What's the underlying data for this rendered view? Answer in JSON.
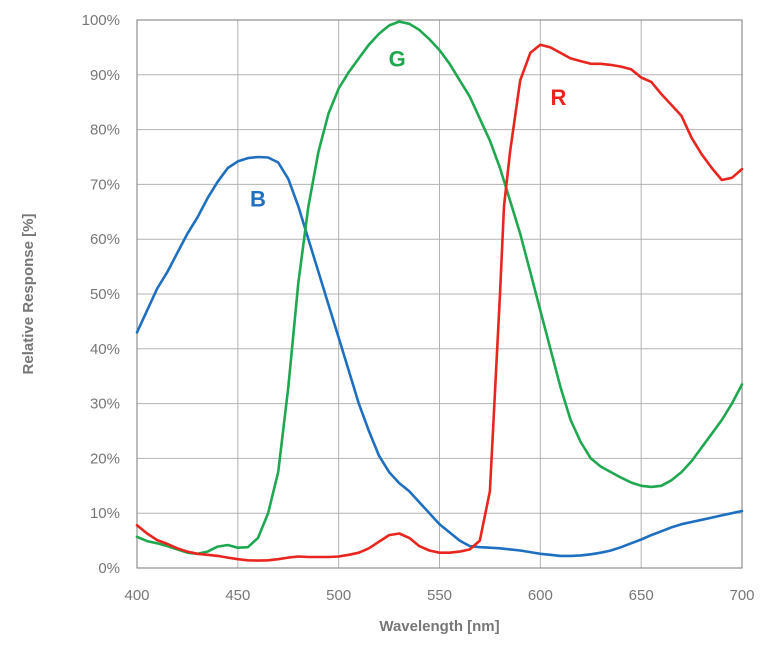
{
  "chart_data": {
    "type": "line",
    "title": "",
    "xlabel": "Wavelength [nm]",
    "ylabel": "Relative Response [%]",
    "xlim": [
      400,
      700
    ],
    "ylim": [
      0,
      100
    ],
    "x_ticks": [
      400,
      450,
      500,
      550,
      600,
      650,
      700
    ],
    "y_ticks": [
      0,
      10,
      20,
      30,
      40,
      50,
      60,
      70,
      80,
      90,
      100
    ],
    "y_tick_suffix": "%",
    "grid": true,
    "legend": "none",
    "series": [
      {
        "name": "B",
        "color": "#1f6fc0",
        "label_at": [
          460,
          66
        ],
        "points": [
          [
            400,
            43
          ],
          [
            405,
            47
          ],
          [
            410,
            51
          ],
          [
            415,
            54
          ],
          [
            420,
            57.5
          ],
          [
            425,
            61
          ],
          [
            430,
            64
          ],
          [
            435,
            67.5
          ],
          [
            440,
            70.5
          ],
          [
            445,
            73
          ],
          [
            450,
            74.2
          ],
          [
            455,
            74.8
          ],
          [
            460,
            75
          ],
          [
            465,
            74.9
          ],
          [
            470,
            74
          ],
          [
            475,
            71
          ],
          [
            480,
            66
          ],
          [
            485,
            60
          ],
          [
            490,
            54
          ],
          [
            495,
            48
          ],
          [
            500,
            42
          ],
          [
            505,
            36
          ],
          [
            510,
            30
          ],
          [
            515,
            25
          ],
          [
            520,
            20.5
          ],
          [
            525,
            17.5
          ],
          [
            530,
            15.5
          ],
          [
            535,
            14
          ],
          [
            540,
            12
          ],
          [
            545,
            10
          ],
          [
            550,
            8
          ],
          [
            555,
            6.5
          ],
          [
            560,
            5
          ],
          [
            565,
            4
          ],
          [
            570,
            3.8
          ],
          [
            575,
            3.7
          ],
          [
            580,
            3.6
          ],
          [
            585,
            3.4
          ],
          [
            590,
            3.2
          ],
          [
            595,
            2.9
          ],
          [
            600,
            2.6
          ],
          [
            605,
            2.4
          ],
          [
            610,
            2.2
          ],
          [
            615,
            2.2
          ],
          [
            620,
            2.3
          ],
          [
            625,
            2.5
          ],
          [
            630,
            2.8
          ],
          [
            635,
            3.2
          ],
          [
            640,
            3.8
          ],
          [
            645,
            4.5
          ],
          [
            650,
            5.2
          ],
          [
            655,
            6
          ],
          [
            660,
            6.7
          ],
          [
            665,
            7.4
          ],
          [
            670,
            8
          ],
          [
            675,
            8.4
          ],
          [
            680,
            8.8
          ],
          [
            685,
            9.2
          ],
          [
            690,
            9.6
          ],
          [
            695,
            10
          ],
          [
            700,
            10.4
          ]
        ]
      },
      {
        "name": "G",
        "color": "#1fa84f",
        "label_at": [
          529,
          91.5
        ],
        "points": [
          [
            400,
            5.7
          ],
          [
            405,
            4.9
          ],
          [
            410,
            4.5
          ],
          [
            415,
            4
          ],
          [
            420,
            3.4
          ],
          [
            425,
            2.8
          ],
          [
            430,
            2.6
          ],
          [
            435,
            3
          ],
          [
            440,
            3.9
          ],
          [
            445,
            4.2
          ],
          [
            450,
            3.7
          ],
          [
            455,
            3.8
          ],
          [
            460,
            5.5
          ],
          [
            465,
            10
          ],
          [
            470,
            17.5
          ],
          [
            475,
            33
          ],
          [
            480,
            52
          ],
          [
            485,
            66
          ],
          [
            490,
            76
          ],
          [
            495,
            83
          ],
          [
            500,
            87.5
          ],
          [
            505,
            90.5
          ],
          [
            510,
            93
          ],
          [
            515,
            95.5
          ],
          [
            520,
            97.5
          ],
          [
            525,
            99
          ],
          [
            530,
            99.7
          ],
          [
            535,
            99.3
          ],
          [
            540,
            98.2
          ],
          [
            545,
            96.5
          ],
          [
            550,
            94.5
          ],
          [
            555,
            92
          ],
          [
            560,
            89
          ],
          [
            565,
            86
          ],
          [
            570,
            82
          ],
          [
            575,
            78
          ],
          [
            580,
            73
          ],
          [
            585,
            67
          ],
          [
            590,
            61
          ],
          [
            595,
            54
          ],
          [
            600,
            47
          ],
          [
            605,
            40
          ],
          [
            610,
            33
          ],
          [
            615,
            27
          ],
          [
            620,
            23
          ],
          [
            625,
            20
          ],
          [
            630,
            18.5
          ],
          [
            635,
            17.5
          ],
          [
            640,
            16.5
          ],
          [
            645,
            15.6
          ],
          [
            650,
            15
          ],
          [
            655,
            14.8
          ],
          [
            660,
            15
          ],
          [
            665,
            16
          ],
          [
            670,
            17.5
          ],
          [
            675,
            19.5
          ],
          [
            680,
            22
          ],
          [
            685,
            24.5
          ],
          [
            690,
            27
          ],
          [
            695,
            30
          ],
          [
            700,
            33.5
          ]
        ]
      },
      {
        "name": "R",
        "color": "#e8251f",
        "label_at": [
          609,
          84.5
        ],
        "points": [
          [
            400,
            7.8
          ],
          [
            405,
            6.3
          ],
          [
            410,
            5.1
          ],
          [
            415,
            4.4
          ],
          [
            420,
            3.6
          ],
          [
            425,
            3
          ],
          [
            430,
            2.6
          ],
          [
            435,
            2.4
          ],
          [
            440,
            2.2
          ],
          [
            445,
            1.9
          ],
          [
            450,
            1.6
          ],
          [
            455,
            1.4
          ],
          [
            460,
            1.35
          ],
          [
            465,
            1.4
          ],
          [
            470,
            1.6
          ],
          [
            475,
            1.9
          ],
          [
            480,
            2.1
          ],
          [
            485,
            2
          ],
          [
            490,
            2
          ],
          [
            495,
            2
          ],
          [
            500,
            2.1
          ],
          [
            505,
            2.4
          ],
          [
            510,
            2.8
          ],
          [
            515,
            3.6
          ],
          [
            520,
            4.8
          ],
          [
            525,
            6
          ],
          [
            530,
            6.3
          ],
          [
            535,
            5.5
          ],
          [
            540,
            4
          ],
          [
            545,
            3.2
          ],
          [
            550,
            2.8
          ],
          [
            555,
            2.8
          ],
          [
            560,
            3
          ],
          [
            565,
            3.4
          ],
          [
            570,
            5
          ],
          [
            575,
            14
          ],
          [
            580,
            50
          ],
          [
            582,
            66
          ],
          [
            585,
            76
          ],
          [
            590,
            89
          ],
          [
            595,
            94
          ],
          [
            600,
            95.5
          ],
          [
            605,
            95
          ],
          [
            610,
            94
          ],
          [
            615,
            93
          ],
          [
            620,
            92.5
          ],
          [
            625,
            92
          ],
          [
            630,
            92
          ],
          [
            635,
            91.8
          ],
          [
            640,
            91.5
          ],
          [
            645,
            91
          ],
          [
            650,
            89.5
          ],
          [
            655,
            88.7
          ],
          [
            660,
            86.5
          ],
          [
            665,
            84.5
          ],
          [
            670,
            82.5
          ],
          [
            675,
            78.5
          ],
          [
            680,
            75.5
          ],
          [
            685,
            73
          ],
          [
            690,
            70.8
          ],
          [
            695,
            71.2
          ],
          [
            700,
            72.8
          ]
        ]
      }
    ]
  }
}
